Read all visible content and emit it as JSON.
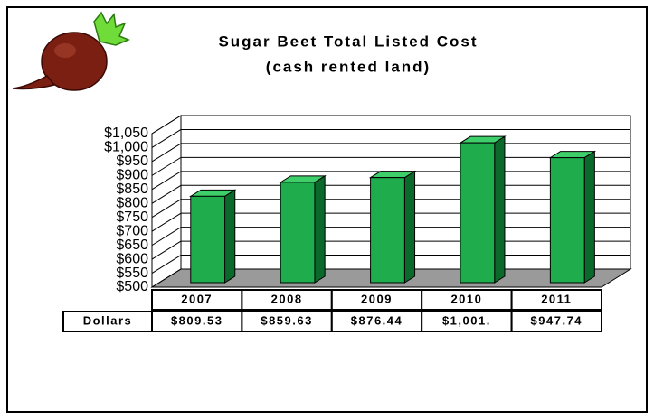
{
  "chart_data": {
    "type": "bar3d",
    "title": "Sugar Beet Total Listed Cost",
    "subtitle": "(cash rented land)",
    "categories": [
      "2007",
      "2008",
      "2009",
      "2010",
      "2011"
    ],
    "table_header": "Dollars",
    "values": [
      809.53,
      859.63,
      876.44,
      1001,
      947.74
    ],
    "value_labels": [
      "$809.53",
      "$859.63",
      "$876.44",
      "$1,001.",
      "$947.74"
    ],
    "color": "#1eac4c",
    "ylim": [
      500,
      1050
    ],
    "yticks": [
      {
        "value": 500,
        "label": "$500"
      },
      {
        "value": 550,
        "label": "$550"
      },
      {
        "value": 600,
        "label": "$600"
      },
      {
        "value": 650,
        "label": "$650"
      },
      {
        "value": 700,
        "label": "$700"
      },
      {
        "value": 750,
        "label": "$750"
      },
      {
        "value": 800,
        "label": "$800"
      },
      {
        "value": 850,
        "label": "$850"
      },
      {
        "value": 900,
        "label": "$900"
      },
      {
        "value": 950,
        "label": "$950"
      },
      {
        "value": 1000,
        "label": "$1,000"
      },
      {
        "value": 1050,
        "label": "$1,050"
      }
    ],
    "grid": true
  }
}
